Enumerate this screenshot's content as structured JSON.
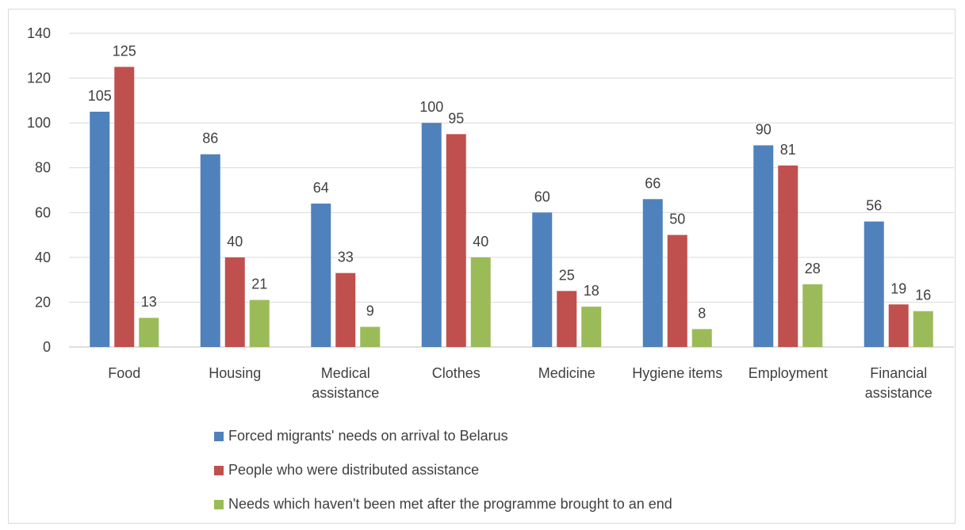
{
  "chart_data": {
    "type": "bar",
    "title": "",
    "xlabel": "",
    "ylabel": "",
    "ylim": [
      0,
      140
    ],
    "yticks": [
      0,
      20,
      40,
      60,
      80,
      100,
      120,
      140
    ],
    "grid": true,
    "legend_position": "bottom",
    "categories": [
      "Food",
      "Housing",
      "Medical assistance",
      "Clothes",
      "Medicine",
      "Hygiene items",
      "Employment",
      "Financial assistance"
    ],
    "series": [
      {
        "name": "Forced migrants' needs on arrival to Belarus",
        "color": "#4f81bd",
        "values": [
          105,
          86,
          64,
          100,
          60,
          66,
          90,
          56
        ]
      },
      {
        "name": "People who were distributed assistance",
        "color": "#c0504d",
        "values": [
          125,
          40,
          33,
          95,
          25,
          50,
          81,
          19
        ]
      },
      {
        "name": "Needs which haven't been met after the programme brought to an end",
        "color": "#9bbb59",
        "values": [
          13,
          21,
          9,
          40,
          18,
          8,
          28,
          16
        ]
      }
    ]
  }
}
